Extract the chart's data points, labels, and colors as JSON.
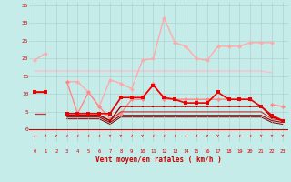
{
  "x": [
    0,
    1,
    2,
    3,
    4,
    5,
    6,
    7,
    8,
    9,
    10,
    11,
    12,
    13,
    14,
    15,
    16,
    17,
    18,
    19,
    20,
    21,
    22,
    23
  ],
  "xlabel": "Vent moyen/en rafales ( km/h )",
  "bg": "#c6ecea",
  "grid_color": "#aacccc",
  "ylim": [
    0,
    36
  ],
  "yticks": [
    0,
    5,
    10,
    15,
    20,
    25,
    30,
    35
  ],
  "lines": [
    {
      "y": [
        19.5,
        21.5,
        null,
        13.5,
        13.5,
        10.5,
        6.5,
        14.0,
        13.0,
        11.5,
        19.5,
        20.0,
        31.5,
        24.5,
        23.5,
        20.0,
        19.5,
        23.5,
        23.5,
        23.5,
        24.5,
        24.5,
        24.5,
        null
      ],
      "color": "#ffaaaa",
      "lw": 1.0,
      "marker": "D",
      "ms": 2.5,
      "zorder": 2
    },
    {
      "y": [
        16.5,
        16.5,
        16.5,
        16.5,
        16.5,
        16.5,
        16.5,
        16.5,
        16.5,
        16.5,
        16.5,
        16.5,
        16.5,
        16.5,
        16.5,
        16.5,
        16.5,
        16.5,
        16.5,
        16.5,
        16.5,
        16.5,
        16.0,
        null
      ],
      "color": "#ffbbcc",
      "lw": 1.0,
      "marker": null,
      "ms": 0,
      "zorder": 1
    },
    {
      "y": [
        null,
        null,
        null,
        13.5,
        4.5,
        10.5,
        6.5,
        3.0,
        4.5,
        8.5,
        8.5,
        13.0,
        8.5,
        8.5,
        8.5,
        8.5,
        8.5,
        8.5,
        8.5,
        8.5,
        8.5,
        null,
        7.0,
        6.5
      ],
      "color": "#ff8888",
      "lw": 1.0,
      "marker": "D",
      "ms": 2.5,
      "zorder": 3
    },
    {
      "y": [
        10.5,
        10.5,
        null,
        4.5,
        4.5,
        4.5,
        4.5,
        4.5,
        9.0,
        9.0,
        9.0,
        12.5,
        9.0,
        8.5,
        7.5,
        7.5,
        7.5,
        10.5,
        8.5,
        8.5,
        8.5,
        6.5,
        4.0,
        2.5
      ],
      "color": "#ee0000",
      "lw": 1.2,
      "marker": "s",
      "ms": 2.5,
      "zorder": 5
    },
    {
      "y": [
        10.5,
        10.5,
        null,
        4.0,
        4.0,
        4.0,
        4.0,
        2.5,
        6.5,
        6.5,
        6.5,
        6.5,
        6.5,
        6.5,
        6.5,
        6.5,
        6.5,
        6.5,
        6.5,
        6.5,
        6.5,
        6.5,
        3.5,
        2.5
      ],
      "color": "#aa0000",
      "lw": 1.0,
      "marker": "s",
      "ms": 2.0,
      "zorder": 4
    },
    {
      "y": [
        4.5,
        4.5,
        null,
        4.0,
        4.0,
        4.0,
        4.0,
        2.5,
        5.0,
        5.0,
        5.0,
        5.0,
        5.0,
        5.0,
        5.0,
        5.0,
        5.0,
        5.0,
        5.0,
        5.0,
        5.0,
        5.0,
        3.0,
        2.5
      ],
      "color": "#cc3333",
      "lw": 0.8,
      "marker": null,
      "ms": 0,
      "zorder": 3
    },
    {
      "y": [
        4.5,
        4.5,
        null,
        3.5,
        3.5,
        3.5,
        3.5,
        2.0,
        4.0,
        4.0,
        4.0,
        4.0,
        4.0,
        4.0,
        4.0,
        4.0,
        4.0,
        4.0,
        4.0,
        4.0,
        4.0,
        4.0,
        2.5,
        2.0
      ],
      "color": "#990000",
      "lw": 0.8,
      "marker": null,
      "ms": 0,
      "zorder": 2
    },
    {
      "y": [
        4.5,
        4.5,
        null,
        3.0,
        3.0,
        3.0,
        3.0,
        1.5,
        3.5,
        3.5,
        3.5,
        3.5,
        3.5,
        3.5,
        3.5,
        3.5,
        3.5,
        3.5,
        3.5,
        3.5,
        3.5,
        3.5,
        2.0,
        1.5
      ],
      "color": "#770000",
      "lw": 0.7,
      "marker": null,
      "ms": 0,
      "zorder": 1
    }
  ],
  "arrow_angles": [
    225,
    225,
    270,
    225,
    225,
    225,
    225,
    270,
    270,
    225,
    270,
    225,
    225,
    225,
    225,
    225,
    270,
    270,
    225,
    225,
    225,
    270,
    270,
    270
  ],
  "arrow_color": "#cc0000",
  "hline_color": "#cc0000",
  "tick_color": "#cc0000",
  "label_color": "#cc0000"
}
